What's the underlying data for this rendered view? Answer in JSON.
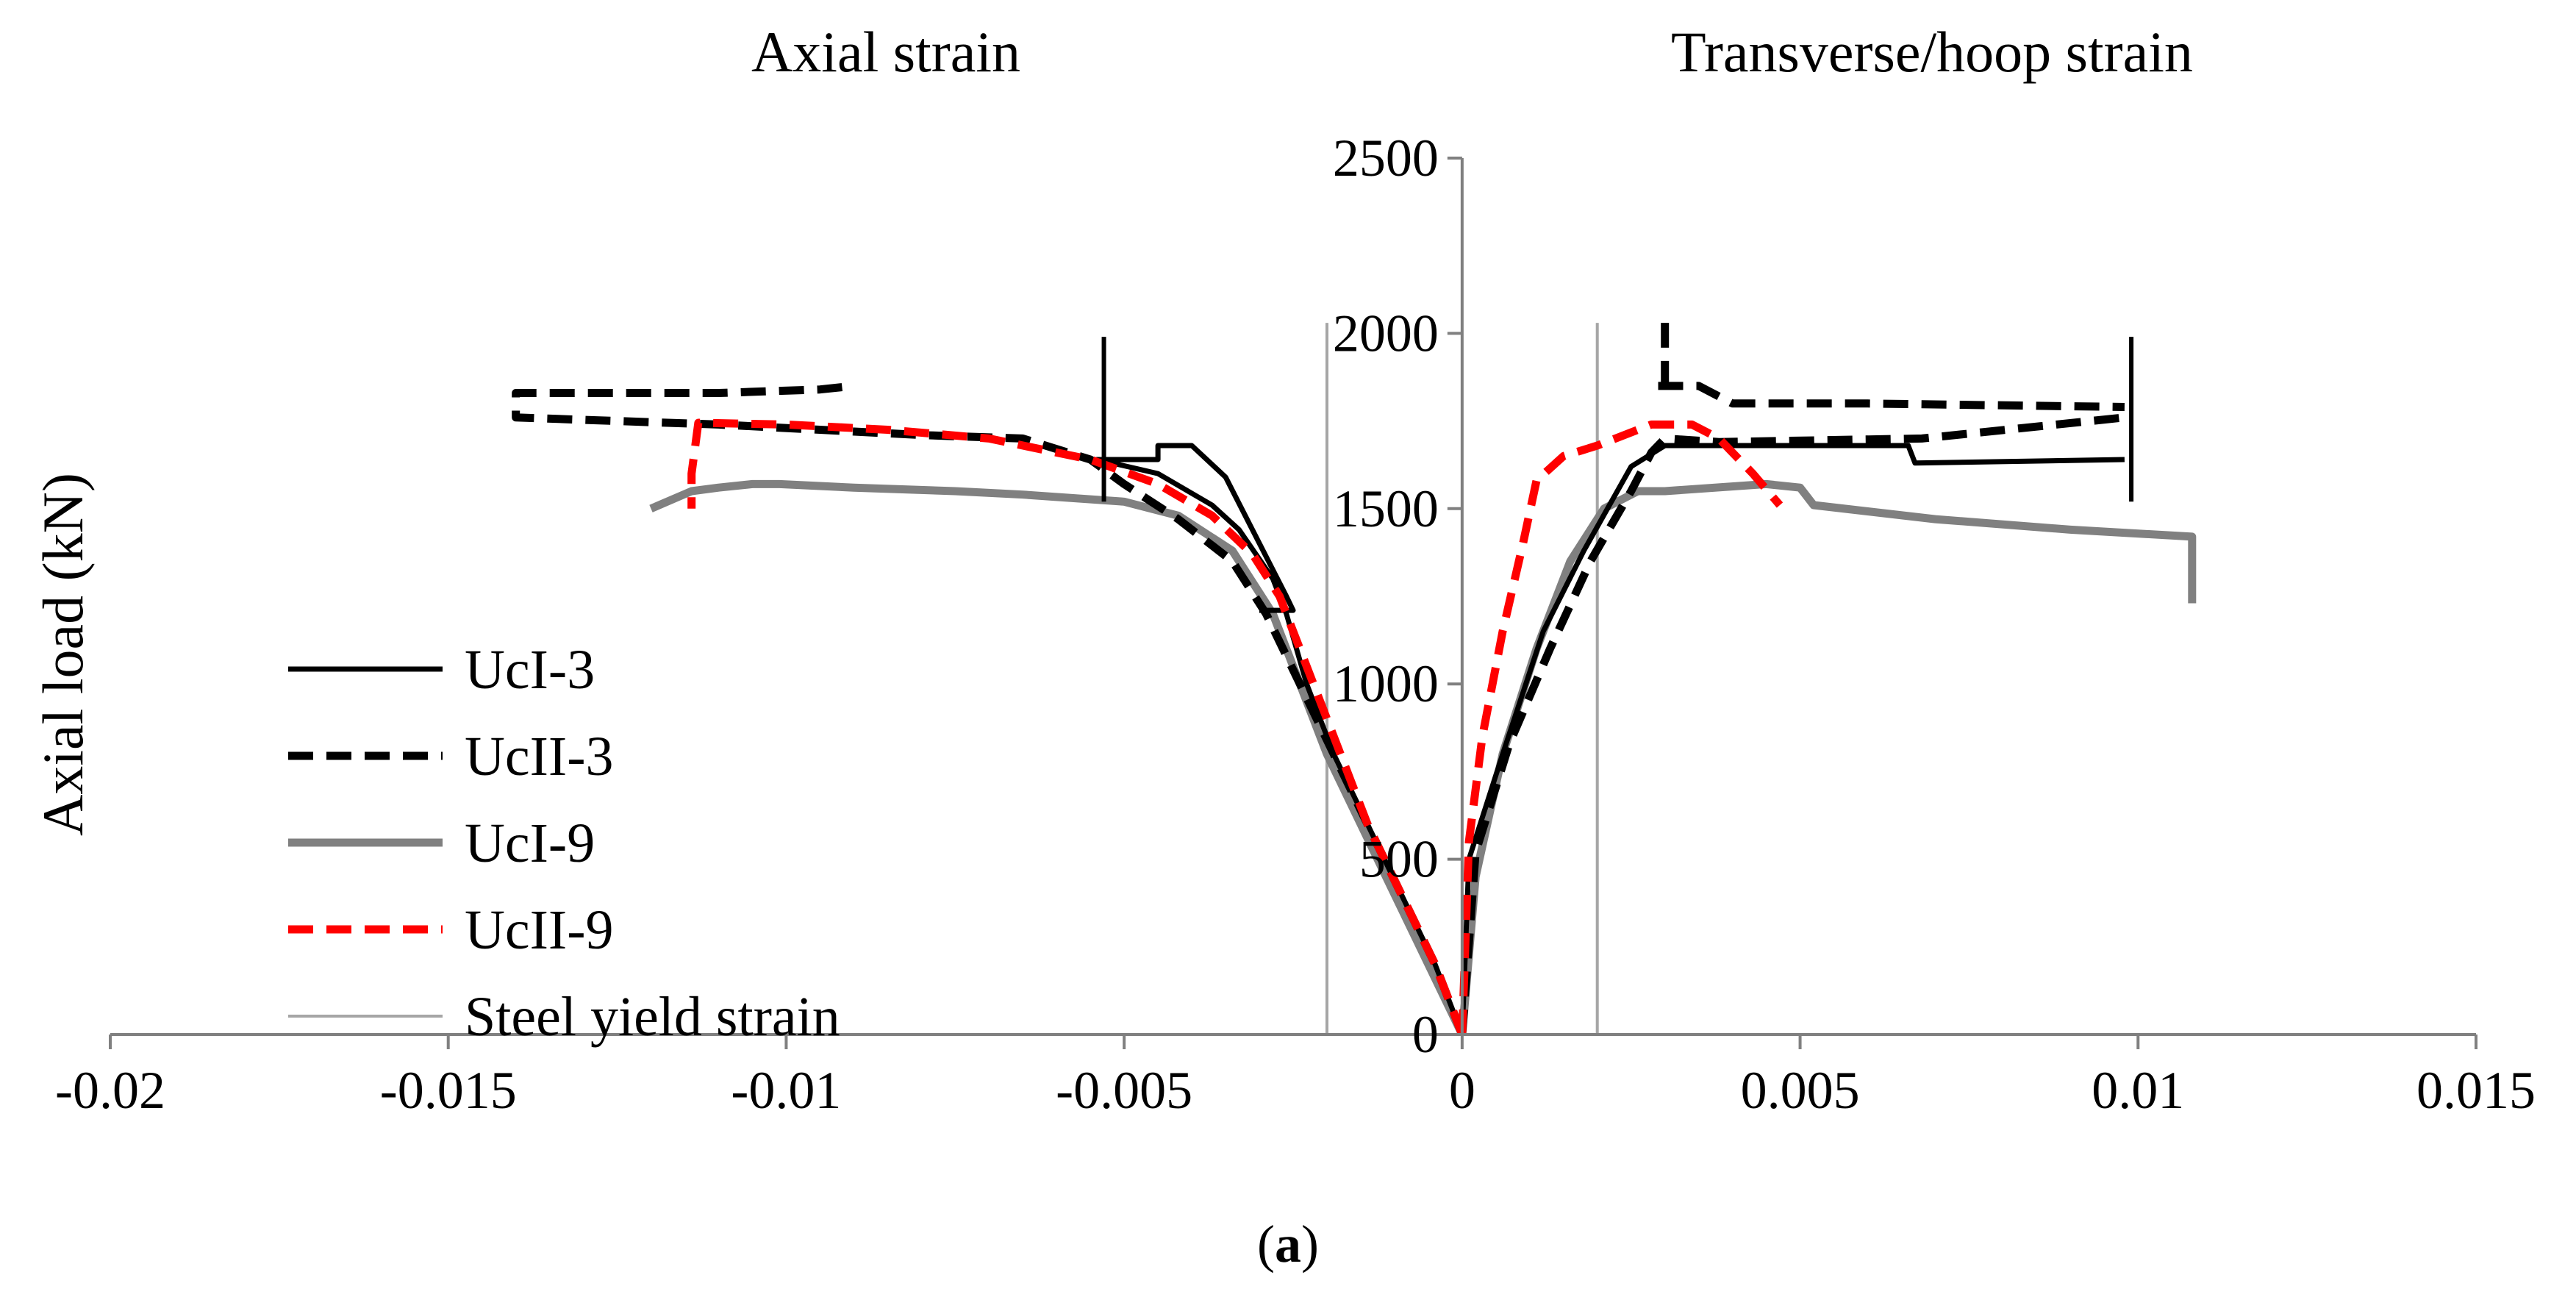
{
  "chart_data": {
    "type": "line",
    "titles": {
      "left": "Axial strain",
      "right": "Transverse/hoop strain"
    },
    "ylabel": "Axial load (kN)",
    "xlabel": "",
    "caption": {
      "open": "(",
      "letter": "a",
      "close": ")"
    },
    "xlim": [
      -0.02,
      0.015
    ],
    "ylim": [
      0,
      2500
    ],
    "xticks": [
      -0.02,
      -0.015,
      -0.01,
      -0.005,
      0,
      0.005,
      0.01,
      0.015
    ],
    "xtick_labels": [
      "-0.02",
      "-0.015",
      "-0.01",
      "-0.005",
      "0",
      "0.005",
      "0.01",
      "0.015"
    ],
    "yticks": [
      0,
      500,
      1000,
      1500,
      2000,
      2500
    ],
    "ytick_labels": [
      "0",
      "500",
      "1000",
      "1500",
      "2000",
      "2500"
    ],
    "grid": false,
    "legend": "left",
    "colors": {
      "black": "#000000",
      "gray": "#808080",
      "red": "#ff0000",
      "yield": "#a6a6a6"
    },
    "series": [
      {
        "name": "UcI-3",
        "style": "solid",
        "color": "#000000",
        "width": "medium",
        "segments": [
          [
            [
              0,
              0
            ],
            [
              0.0001,
              500
            ],
            [
              0.0006,
              800
            ],
            [
              0.0012,
              1150
            ],
            [
              0.0018,
              1380
            ],
            [
              0.0025,
              1620
            ],
            [
              0.003,
              1680
            ],
            [
              0.0045,
              1680
            ],
            [
              0.0066,
              1680
            ],
            [
              0.0067,
              1630
            ],
            [
              0.0098,
              1640
            ]
          ],
          [
            [
              0,
              0
            ],
            [
              -0.0004,
              200
            ],
            [
              -0.0009,
              400
            ],
            [
              -0.0014,
              600
            ],
            [
              -0.0019,
              800
            ],
            [
              -0.0023,
              1000
            ],
            [
              -0.0026,
              1200
            ],
            [
              -0.0028,
              1300
            ],
            [
              -0.0033,
              1440
            ],
            [
              -0.0037,
              1510
            ],
            [
              -0.0045,
              1600
            ],
            [
              -0.0054,
              1640
            ],
            [
              -0.0045,
              1640
            ],
            [
              -0.0045,
              1680
            ],
            [
              -0.004,
              1680
            ],
            [
              -0.0035,
              1590
            ],
            [
              -0.0026,
              1250
            ],
            [
              -0.0025,
              1210
            ],
            [
              -0.003,
              1210
            ]
          ]
        ]
      },
      {
        "name": "UcII-3",
        "style": "dashed",
        "color": "#000000",
        "width": "thick",
        "segments": [
          [
            [
              0,
              0
            ],
            [
              0.0002,
              520
            ],
            [
              0.0007,
              830
            ],
            [
              0.0013,
              1100
            ],
            [
              0.0019,
              1350
            ],
            [
              0.0025,
              1550
            ],
            [
              0.0028,
              1660
            ],
            [
              0.003,
              1700
            ],
            [
              0.0038,
              1690
            ],
            [
              0.0068,
              1700
            ],
            [
              0.0098,
              1760
            ]
          ],
          [
            [
              0.003,
              1850
            ],
            [
              0.003,
              2030
            ]
          ],
          [
            [
              0.0029,
              1850
            ],
            [
              0.0035,
              1850
            ],
            [
              0.004,
              1800
            ],
            [
              0.006,
              1800
            ],
            [
              0.0098,
              1790
            ]
          ],
          [
            [
              0,
              0
            ],
            [
              -0.0004,
              200
            ],
            [
              -0.0009,
              400
            ],
            [
              -0.0014,
              600
            ],
            [
              -0.0019,
              800
            ],
            [
              -0.0024,
              1000
            ],
            [
              -0.0029,
              1200
            ],
            [
              -0.0034,
              1350
            ],
            [
              -0.0042,
              1470
            ],
            [
              -0.005,
              1570
            ],
            [
              -0.0055,
              1640
            ],
            [
              -0.0065,
              1700
            ],
            [
              -0.008,
              1710
            ],
            [
              -0.0095,
              1725
            ],
            [
              -0.011,
              1740
            ],
            [
              -0.0125,
              1750
            ],
            [
              -0.014,
              1760
            ],
            [
              -0.014,
              1830
            ],
            [
              -0.0125,
              1830
            ],
            [
              -0.011,
              1830
            ],
            [
              -0.0095,
              1840
            ],
            [
              -0.009,
              1850
            ]
          ]
        ]
      },
      {
        "name": "UcI-9",
        "style": "solid",
        "color": "#808080",
        "width": "thick",
        "segments": [
          [
            [
              0,
              0
            ],
            [
              0.0002,
              450
            ],
            [
              0.0006,
              800
            ],
            [
              0.0011,
              1100
            ],
            [
              0.0016,
              1350
            ],
            [
              0.0021,
              1500
            ],
            [
              0.0026,
              1550
            ],
            [
              0.003,
              1550
            ],
            [
              0.0045,
              1570
            ],
            [
              0.005,
              1560
            ],
            [
              0.0052,
              1510
            ],
            [
              0.007,
              1470
            ],
            [
              0.009,
              1440
            ],
            [
              0.0108,
              1420
            ],
            [
              0.0108,
              1230
            ]
          ],
          [
            [
              0,
              0
            ],
            [
              -0.0005,
              200
            ],
            [
              -0.001,
              400
            ],
            [
              -0.0015,
              600
            ],
            [
              -0.002,
              800
            ],
            [
              -0.0024,
              1000
            ],
            [
              -0.0028,
              1200
            ],
            [
              -0.0034,
              1380
            ],
            [
              -0.0042,
              1480
            ],
            [
              -0.005,
              1520
            ],
            [
              -0.0065,
              1540
            ],
            [
              -0.0075,
              1550
            ],
            [
              -0.009,
              1560
            ],
            [
              -0.0101,
              1570
            ],
            [
              -0.0105,
              1570
            ],
            [
              -0.011,
              1560
            ],
            [
              -0.0114,
              1550
            ],
            [
              -0.012,
              1500
            ]
          ]
        ]
      },
      {
        "name": "UcII-9",
        "style": "dashed",
        "color": "#ff0000",
        "width": "thick",
        "segments": [
          [
            [
              0,
              0
            ],
            [
              0.0001,
              550
            ],
            [
              0.0003,
              850
            ],
            [
              0.0006,
              1150
            ],
            [
              0.0009,
              1400
            ],
            [
              0.0011,
              1580
            ],
            [
              0.0015,
              1650
            ],
            [
              0.002,
              1680
            ],
            [
              0.0028,
              1740
            ],
            [
              0.0034,
              1740
            ],
            [
              0.0038,
              1700
            ],
            [
              0.0043,
              1600
            ],
            [
              0.0047,
              1510
            ]
          ],
          [
            [
              0,
              0
            ],
            [
              -0.0004,
              200
            ],
            [
              -0.0009,
              400
            ],
            [
              -0.0014,
              600
            ],
            [
              -0.0019,
              850
            ],
            [
              -0.0023,
              1050
            ],
            [
              -0.0027,
              1250
            ],
            [
              -0.0031,
              1370
            ],
            [
              -0.0037,
              1480
            ],
            [
              -0.0045,
              1570
            ],
            [
              -0.0055,
              1640
            ],
            [
              -0.007,
              1700
            ],
            [
              -0.0085,
              1725
            ],
            [
              -0.01,
              1740
            ],
            [
              -0.0113,
              1745
            ],
            [
              -0.0114,
              1600
            ],
            [
              -0.0114,
              1500
            ]
          ]
        ]
      },
      {
        "name": "Steel yield strain",
        "style": "solid",
        "color": "#a6a6a6",
        "width": "thin",
        "segments": [
          [
            [
              -0.002,
              0
            ],
            [
              -0.002,
              2030
            ]
          ],
          [
            [
              0.002,
              0
            ],
            [
              0.002,
              2030
            ]
          ]
        ]
      }
    ],
    "markers": [
      {
        "name": "UcI-3 axial limit",
        "color": "#000000",
        "x": -0.0053,
        "y0": 1520,
        "y1": 1990
      },
      {
        "name": "UcI-3 hoop limit",
        "color": "#000000",
        "x": 0.0099,
        "y0": 1520,
        "y1": 1990
      }
    ]
  }
}
